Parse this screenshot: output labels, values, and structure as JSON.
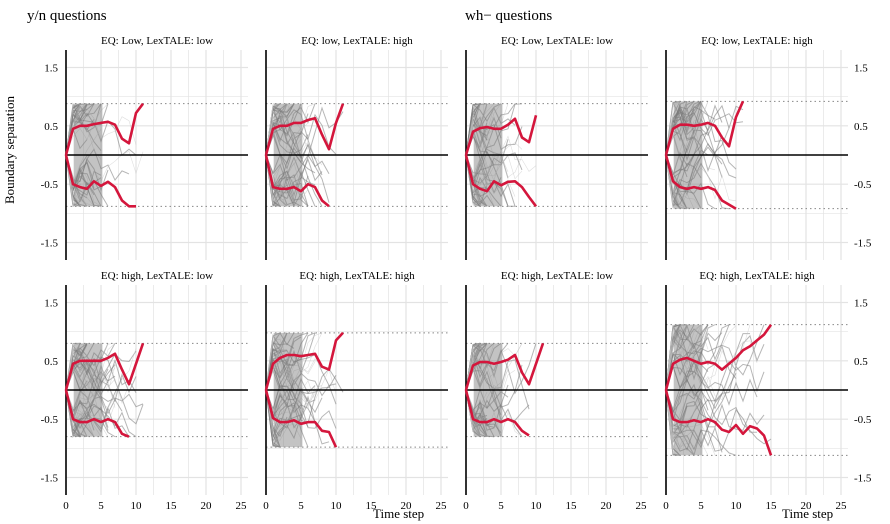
{
  "figure": {
    "ylabel": "Boundary separation",
    "xlabel": "Time step",
    "groups": [
      {
        "title": "y/n questions"
      },
      {
        "title": "wh− questions"
      }
    ],
    "y_tick_labels": [
      "1.5",
      "0.5",
      "-0.5",
      "-1.5"
    ],
    "x_tick_labels": [
      "0",
      "5",
      "10",
      "15",
      "20",
      "25"
    ]
  },
  "colors": {
    "mean_path": "#d4163c",
    "trajectories": "#7a7a7a",
    "grid": "#e3e3e3",
    "boundary": "#888888",
    "axis": "#000000"
  },
  "chart_data": [
    {
      "type": "line",
      "group": "y/n questions",
      "title": "EQ: Low, LexTALE: low",
      "xlim": [
        0,
        26
      ],
      "ylim": [
        -1.8,
        1.8
      ],
      "yticks": [
        1.5,
        0.5,
        -0.5,
        -1.5
      ],
      "xticks": [
        0,
        5,
        10,
        15,
        20,
        25
      ],
      "boundary": 0.88,
      "series": [
        {
          "x": [
            0,
            1,
            2,
            3,
            4,
            5,
            6,
            7,
            8,
            9,
            10,
            11
          ],
          "y": [
            0,
            0.45,
            0.5,
            0.5,
            0.53,
            0.55,
            0.57,
            0.52,
            0.28,
            0.2,
            0.72,
            0.88
          ]
        },
        {
          "x": [
            0,
            1,
            2,
            3,
            4,
            5,
            6,
            7,
            8,
            9,
            10
          ],
          "y": [
            0,
            -0.5,
            -0.55,
            -0.58,
            -0.45,
            -0.53,
            -0.46,
            -0.55,
            -0.78,
            -0.88,
            -0.88
          ]
        }
      ]
    },
    {
      "type": "line",
      "group": "y/n questions",
      "title": "EQ: low, LexTALE: high",
      "xlim": [
        0,
        26
      ],
      "ylim": [
        -1.8,
        1.8
      ],
      "yticks": [
        1.5,
        0.5,
        -0.5,
        -1.5
      ],
      "xticks": [
        0,
        5,
        10,
        15,
        20,
        25
      ],
      "boundary": 0.88,
      "series": [
        {
          "x": [
            0,
            1,
            2,
            3,
            4,
            5,
            6,
            7,
            8,
            9,
            10,
            11
          ],
          "y": [
            0,
            0.45,
            0.5,
            0.5,
            0.55,
            0.55,
            0.6,
            0.63,
            0.35,
            0.1,
            0.55,
            0.88
          ]
        },
        {
          "x": [
            0,
            1,
            2,
            3,
            4,
            5,
            6,
            7,
            8,
            9
          ],
          "y": [
            0,
            -0.55,
            -0.58,
            -0.58,
            -0.55,
            -0.62,
            -0.5,
            -0.55,
            -0.78,
            -0.88
          ]
        }
      ]
    },
    {
      "type": "line",
      "group": "wh− questions",
      "title": "EQ: Low, LexTALE: low",
      "xlim": [
        0,
        26
      ],
      "ylim": [
        -1.8,
        1.8
      ],
      "yticks": [
        1.5,
        0.5,
        -0.5,
        -1.5
      ],
      "xticks": [
        0,
        5,
        10,
        15,
        20,
        25
      ],
      "boundary": 0.88,
      "series": [
        {
          "x": [
            0,
            1,
            2,
            3,
            4,
            5,
            6,
            7,
            8,
            9,
            10
          ],
          "y": [
            0,
            0.4,
            0.46,
            0.48,
            0.45,
            0.45,
            0.52,
            0.62,
            0.3,
            0.22,
            0.68
          ]
        },
        {
          "x": [
            0,
            1,
            2,
            3,
            4,
            5,
            6,
            7,
            8,
            9,
            10
          ],
          "y": [
            0,
            -0.5,
            -0.58,
            -0.62,
            -0.45,
            -0.52,
            -0.46,
            -0.45,
            -0.55,
            -0.72,
            -0.88
          ]
        }
      ]
    },
    {
      "type": "line",
      "group": "wh− questions",
      "title": "EQ: low, LexTALE: high",
      "xlim": [
        0,
        26
      ],
      "ylim": [
        -1.8,
        1.8
      ],
      "yticks": [
        1.5,
        0.5,
        -0.5,
        -1.5
      ],
      "xticks": [
        0,
        5,
        10,
        15,
        20,
        25
      ],
      "boundary": 0.92,
      "series": [
        {
          "x": [
            0,
            1,
            2,
            3,
            4,
            5,
            6,
            7,
            8,
            9,
            10,
            11
          ],
          "y": [
            0,
            0.45,
            0.52,
            0.52,
            0.5,
            0.52,
            0.55,
            0.5,
            0.3,
            0.15,
            0.65,
            0.92
          ]
        },
        {
          "x": [
            0,
            1,
            2,
            3,
            4,
            5,
            6,
            7,
            8,
            9,
            10
          ],
          "y": [
            0,
            -0.45,
            -0.55,
            -0.58,
            -0.55,
            -0.58,
            -0.55,
            -0.6,
            -0.78,
            -0.85,
            -0.92
          ]
        }
      ]
    },
    {
      "type": "line",
      "group": "y/n questions",
      "title": "EQ: high, LexTALE: low",
      "xlim": [
        0,
        26
      ],
      "ylim": [
        -1.8,
        1.8
      ],
      "yticks": [
        1.5,
        0.5,
        -0.5,
        -1.5
      ],
      "xticks": [
        0,
        5,
        10,
        15,
        20,
        25
      ],
      "boundary": 0.8,
      "series": [
        {
          "x": [
            0,
            1,
            2,
            3,
            4,
            5,
            6,
            7,
            8,
            9,
            10,
            11
          ],
          "y": [
            0,
            0.45,
            0.5,
            0.5,
            0.5,
            0.5,
            0.55,
            0.62,
            0.35,
            0.1,
            0.45,
            0.8
          ]
        },
        {
          "x": [
            0,
            1,
            2,
            3,
            4,
            5,
            6,
            7,
            8,
            9
          ],
          "y": [
            0,
            -0.5,
            -0.55,
            -0.55,
            -0.5,
            -0.55,
            -0.5,
            -0.55,
            -0.75,
            -0.8
          ]
        }
      ]
    },
    {
      "type": "line",
      "group": "y/n questions",
      "title": "EQ: high, LexTALE: high",
      "xlim": [
        0,
        26
      ],
      "ylim": [
        -1.8,
        1.8
      ],
      "yticks": [
        1.5,
        0.5,
        -0.5,
        -1.5
      ],
      "xticks": [
        0,
        5,
        10,
        15,
        20,
        25
      ],
      "boundary": 0.98,
      "series": [
        {
          "x": [
            0,
            1,
            2,
            3,
            4,
            5,
            6,
            7,
            8,
            9,
            10,
            11
          ],
          "y": [
            0,
            0.45,
            0.55,
            0.6,
            0.6,
            0.58,
            0.6,
            0.62,
            0.4,
            0.35,
            0.85,
            0.98
          ]
        },
        {
          "x": [
            0,
            1,
            2,
            3,
            4,
            5,
            6,
            7,
            8,
            9,
            10
          ],
          "y": [
            0,
            -0.48,
            -0.55,
            -0.55,
            -0.52,
            -0.58,
            -0.55,
            -0.55,
            -0.7,
            -0.72,
            -0.98
          ]
        }
      ]
    },
    {
      "type": "line",
      "group": "wh− questions",
      "title": "EQ: high, LexTALE: low",
      "xlim": [
        0,
        26
      ],
      "ylim": [
        -1.8,
        1.8
      ],
      "yticks": [
        1.5,
        0.5,
        -0.5,
        -1.5
      ],
      "xticks": [
        0,
        5,
        10,
        15,
        20,
        25
      ],
      "boundary": 0.8,
      "series": [
        {
          "x": [
            0,
            1,
            2,
            3,
            4,
            5,
            6,
            7,
            8,
            9,
            10,
            11
          ],
          "y": [
            0,
            0.42,
            0.48,
            0.48,
            0.45,
            0.48,
            0.52,
            0.6,
            0.3,
            0.1,
            0.45,
            0.8
          ]
        },
        {
          "x": [
            0,
            1,
            2,
            3,
            4,
            5,
            6,
            7,
            8,
            9
          ],
          "y": [
            0,
            -0.5,
            -0.55,
            -0.55,
            -0.5,
            -0.55,
            -0.5,
            -0.55,
            -0.7,
            -0.78
          ]
        }
      ]
    },
    {
      "type": "line",
      "group": "wh− questions",
      "title": "EQ: high, LexTALE: high",
      "xlim": [
        0,
        26
      ],
      "ylim": [
        -1.8,
        1.8
      ],
      "yticks": [
        1.5,
        0.5,
        -0.5,
        -1.5
      ],
      "xticks": [
        0,
        5,
        10,
        15,
        20,
        25
      ],
      "boundary": 1.12,
      "series": [
        {
          "x": [
            0,
            1,
            2,
            3,
            4,
            5,
            6,
            7,
            8,
            9,
            10,
            11,
            12,
            13,
            14,
            15
          ],
          "y": [
            0,
            0.45,
            0.52,
            0.55,
            0.5,
            0.45,
            0.48,
            0.45,
            0.35,
            0.45,
            0.55,
            0.68,
            0.75,
            0.85,
            0.95,
            1.12
          ]
        },
        {
          "x": [
            0,
            1,
            2,
            3,
            4,
            5,
            6,
            7,
            8,
            9,
            10,
            11,
            12,
            13,
            14,
            15
          ],
          "y": [
            0,
            -0.5,
            -0.55,
            -0.55,
            -0.52,
            -0.55,
            -0.5,
            -0.55,
            -0.68,
            -0.72,
            -0.6,
            -0.75,
            -0.62,
            -0.66,
            -0.78,
            -1.12
          ]
        }
      ]
    }
  ]
}
